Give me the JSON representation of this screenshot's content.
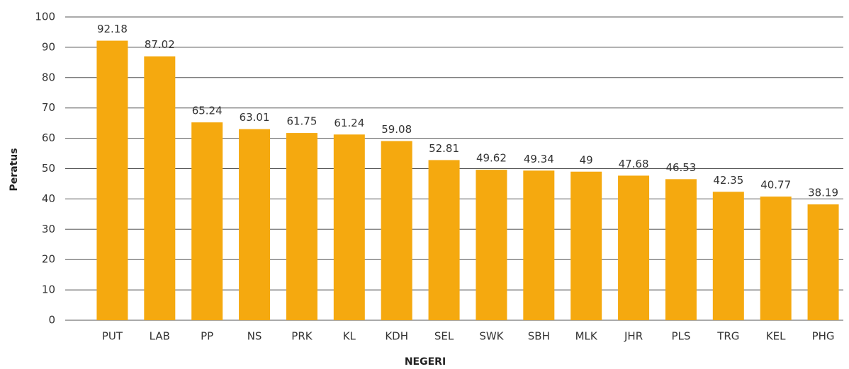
{
  "chart_data": {
    "type": "bar",
    "x_label": "NEGERI",
    "y_label": "Peratus",
    "categories": [
      "PUT",
      "LAB",
      "PP",
      "NS",
      "PRK",
      "KL",
      "KDH",
      "SEL",
      "SWK",
      "SBH",
      "MLK",
      "JHR",
      "PLS",
      "TRG",
      "KEL",
      "PHG"
    ],
    "values": [
      92.18,
      87.02,
      65.24,
      63.01,
      61.75,
      61.24,
      59.08,
      52.81,
      49.62,
      49.34,
      49,
      47.68,
      46.53,
      42.35,
      40.77,
      38.19
    ],
    "color": "#f5a90f",
    "ylim": [
      0,
      100
    ],
    "yticks": [
      0,
      10,
      20,
      30,
      40,
      50,
      60,
      70,
      80,
      90,
      100
    ],
    "grid": true
  }
}
